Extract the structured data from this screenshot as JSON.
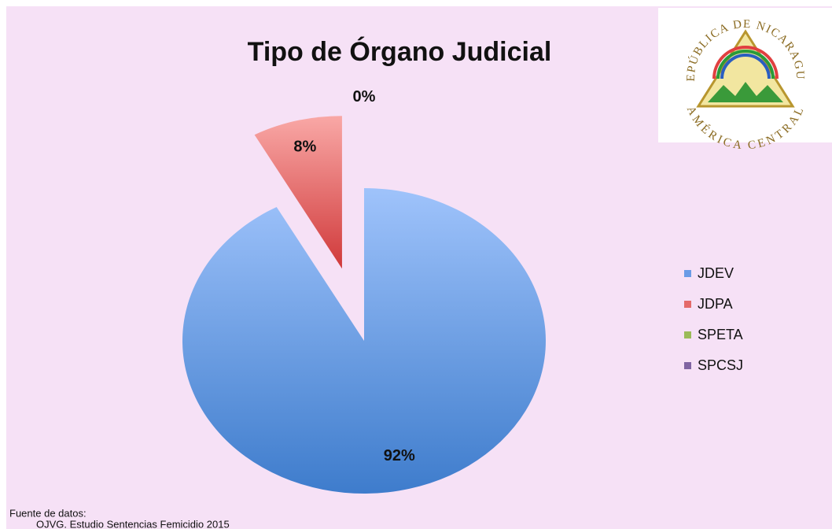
{
  "chart_data": {
    "type": "pie",
    "title": "Tipo de Órgano Judicial",
    "categories": [
      "JDEV",
      "JDPA",
      "SPETA",
      "SPCSJ"
    ],
    "values": [
      92,
      8,
      0,
      0
    ],
    "value_labels": [
      "92%",
      "8%",
      "0%",
      null
    ],
    "colors": [
      "#6a9be6",
      "#e46a6a",
      "#9bbb59",
      "#8064a2"
    ],
    "legend": "right",
    "logo_top": "REPÚBLICA DE NICARAGUA",
    "logo_bottom": "AMÉRICA CENTRAL",
    "source_heading": "Fuente de datos:",
    "source": "OJVG. Estudio Sentencias Femicidio 2015"
  }
}
